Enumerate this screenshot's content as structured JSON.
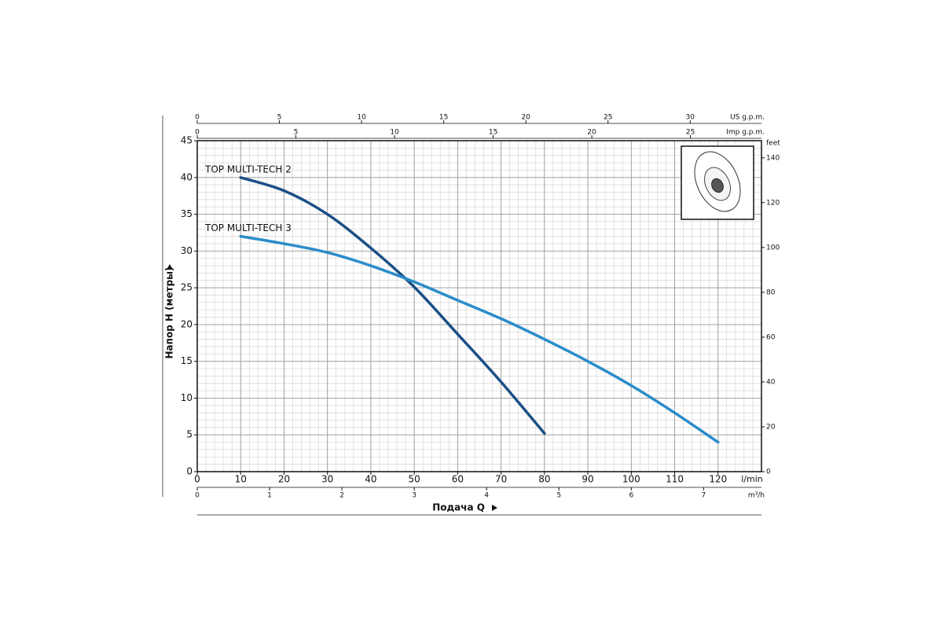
{
  "chart_data": {
    "type": "line",
    "x_label": "Подача Q",
    "y_label": "Напор H (метры)",
    "x_unit": "l/min",
    "xlim": [
      0,
      130
    ],
    "xticks": [
      0,
      10,
      20,
      30,
      40,
      50,
      60,
      70,
      80,
      90,
      100,
      110,
      120
    ],
    "ylim": [
      0,
      45
    ],
    "yticks": [
      0,
      5,
      10,
      15,
      20,
      25,
      30,
      35,
      40,
      45
    ],
    "y2_label": "feet",
    "y2lim": [
      0,
      147.64
    ],
    "y2ticks": [
      0,
      20,
      40,
      60,
      80,
      100,
      120,
      140
    ],
    "grid": true,
    "top_axes": [
      {
        "label": "US g.p.m.",
        "lim": [
          0,
          34.34
        ],
        "ticks": [
          0,
          5,
          10,
          15,
          20,
          25,
          30
        ]
      },
      {
        "label": "Imp g.p.m.",
        "lim": [
          0,
          28.6
        ],
        "ticks": [
          0,
          5,
          10,
          15,
          20,
          25
        ]
      }
    ],
    "bottom_axis2": {
      "label": "m³/h",
      "lim": [
        0,
        7.8
      ],
      "ticks": [
        0,
        1,
        2,
        3,
        4,
        5,
        6,
        7
      ]
    },
    "series": [
      {
        "name": "TOP MULTI-TECH 2",
        "color": "#1c4f87",
        "x": [
          10,
          20,
          30,
          40,
          50,
          60,
          70,
          80
        ],
        "values": [
          40,
          38.2,
          35,
          30.4,
          25.1,
          18.7,
          12.2,
          5.2
        ]
      },
      {
        "name": "TOP MULTI-TECH 3",
        "color": "#2b8cca",
        "x": [
          10,
          20,
          30,
          40,
          50,
          60,
          70,
          80,
          90,
          100,
          110,
          120
        ],
        "values": [
          32,
          31,
          29.8,
          28,
          25.8,
          23.3,
          20.8,
          18,
          15,
          11.7,
          8,
          4
        ]
      }
    ]
  }
}
